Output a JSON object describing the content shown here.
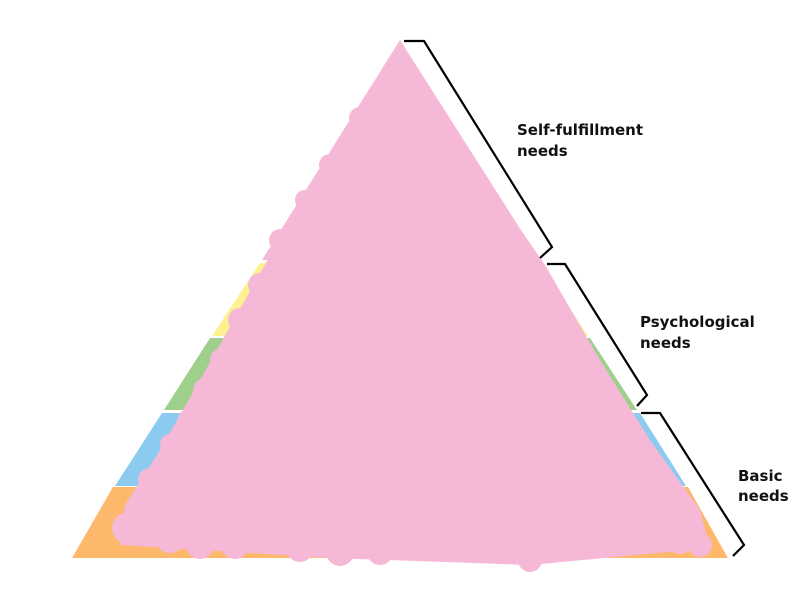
{
  "diagram": {
    "layers": [
      {
        "name": "layer-orange",
        "color": "#FDB86B"
      },
      {
        "name": "layer-blue",
        "color": "#8ACBEF"
      },
      {
        "name": "layer-green",
        "color": "#9FD08B"
      },
      {
        "name": "layer-yellow",
        "color": "#FDF28F"
      },
      {
        "name": "layer-pink",
        "color": "#F5B8D6"
      }
    ],
    "scribble_color": "#F5B8D6",
    "groups": [
      {
        "line1": "Self-fulfillment",
        "line2": "needs"
      },
      {
        "line1": "Psychological",
        "line2": "needs"
      },
      {
        "line1": "Basic",
        "line2": "needs"
      }
    ]
  }
}
